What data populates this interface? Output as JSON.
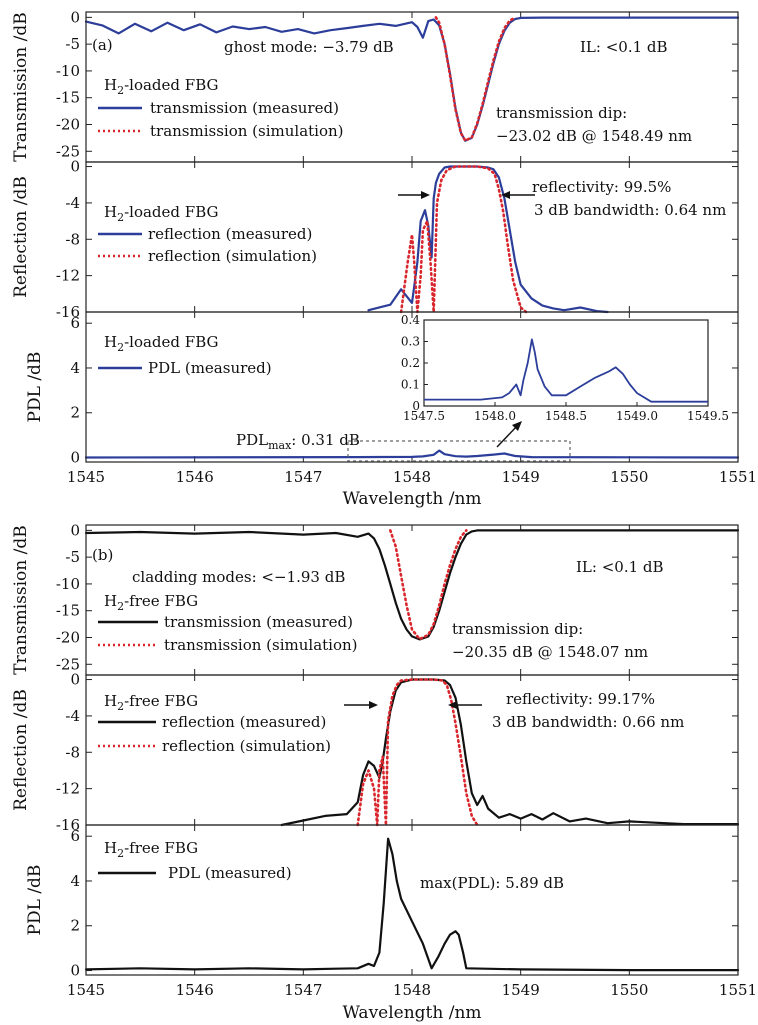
{
  "colors": {
    "measured_a": "#2c3e9a",
    "simulation": "#d9262c",
    "measured_b": "#111111",
    "axis": "#222222"
  },
  "chart_data": [
    {
      "id": "a-transmission",
      "type": "line",
      "panel_label": "(a)",
      "ylabel": "Transmission /dB",
      "xlim": [
        1545,
        1551
      ],
      "ylim": [
        -27,
        1
      ],
      "yticks": [
        "0",
        "-5",
        "-10",
        "-15",
        "-20",
        "-25"
      ],
      "ytick_values": [
        0,
        -5,
        -10,
        -15,
        -20,
        -25
      ],
      "legend_title": "H2-loaded FBG",
      "series": [
        {
          "name": "transmission (measured)",
          "style": "solid",
          "color": "#2c3e9a",
          "x": [
            1545.0,
            1545.15,
            1545.3,
            1545.45,
            1545.6,
            1545.75,
            1545.9,
            1546.05,
            1546.2,
            1546.35,
            1546.5,
            1546.65,
            1546.8,
            1546.95,
            1547.1,
            1547.25,
            1547.4,
            1547.55,
            1547.7,
            1547.85,
            1548.0,
            1548.05,
            1548.1,
            1548.15,
            1548.2,
            1548.25,
            1548.3,
            1548.35,
            1548.4,
            1548.45,
            1548.49,
            1548.55,
            1548.6,
            1548.65,
            1548.7,
            1548.75,
            1548.8,
            1548.85,
            1548.9,
            1548.95,
            1549.0,
            1549.2,
            1549.5,
            1550.0,
            1550.5,
            1551.0
          ],
          "y": [
            -0.8,
            -1.5,
            -3.0,
            -1.2,
            -2.6,
            -1.0,
            -2.4,
            -1.3,
            -2.8,
            -1.7,
            -2.2,
            -1.8,
            -2.7,
            -2.2,
            -3.0,
            -2.4,
            -2.0,
            -1.6,
            -1.2,
            -1.6,
            -0.9,
            -1.8,
            -3.79,
            -0.7,
            -0.4,
            -1.5,
            -5.0,
            -10.5,
            -17.0,
            -21.5,
            -23.02,
            -22.5,
            -20.0,
            -16.5,
            -12.5,
            -8.5,
            -5.0,
            -2.5,
            -1.0,
            -0.3,
            -0.1,
            -0.05,
            -0.05,
            -0.05,
            -0.05,
            -0.05
          ]
        },
        {
          "name": "transmission (simulation)",
          "style": "dotted",
          "color": "#d9262c",
          "x": [
            1548.22,
            1548.25,
            1548.3,
            1548.35,
            1548.4,
            1548.45,
            1548.49,
            1548.55,
            1548.6,
            1548.65,
            1548.7,
            1548.75,
            1548.8,
            1548.85,
            1548.9,
            1548.95
          ],
          "y": [
            0,
            -1.0,
            -5.0,
            -10.8,
            -17.2,
            -21.6,
            -23.0,
            -22.4,
            -19.8,
            -16.2,
            -12.0,
            -8.0,
            -4.5,
            -2.0,
            -0.6,
            0
          ]
        }
      ],
      "annotations": [
        "ghost mode: −3.79 dB",
        "IL: <0.1 dB",
        "transmission dip:",
        "−23.02 dB @ 1548.49 nm"
      ]
    },
    {
      "id": "a-reflection",
      "type": "line",
      "ylabel": "Reflection /dB",
      "xlim": [
        1545,
        1551
      ],
      "ylim": [
        -16,
        0.5
      ],
      "yticks": [
        "0",
        "-4",
        "-8",
        "-12",
        "-16"
      ],
      "ytick_values": [
        0,
        -4,
        -8,
        -12,
        -16
      ],
      "legend_title": "H2-loaded FBG",
      "series": [
        {
          "name": "reflection (measured)",
          "style": "solid",
          "color": "#2c3e9a",
          "x": [
            1547.6,
            1547.8,
            1547.9,
            1548.0,
            1548.02,
            1548.05,
            1548.08,
            1548.12,
            1548.15,
            1548.18,
            1548.2,
            1548.22,
            1548.25,
            1548.3,
            1548.35,
            1548.4,
            1548.5,
            1548.6,
            1548.7,
            1548.75,
            1548.8,
            1548.85,
            1548.9,
            1548.95,
            1549.0,
            1549.1,
            1549.2,
            1549.3,
            1549.4,
            1549.55,
            1549.7,
            1549.8
          ],
          "y": [
            -15.8,
            -15.2,
            -13.5,
            -15.0,
            -13.2,
            -10.5,
            -6.0,
            -4.8,
            -6.5,
            -10.0,
            -3.5,
            -1.8,
            -0.8,
            -0.1,
            0,
            0,
            0,
            0,
            -0.1,
            -0.3,
            -1.2,
            -3.5,
            -7.0,
            -10.5,
            -13.0,
            -14.5,
            -15.3,
            -15.6,
            -15.8,
            -15.5,
            -15.9,
            -16
          ]
        },
        {
          "name": "reflection (simulation)",
          "style": "dotted",
          "color": "#d9262c",
          "x": [
            1547.9,
            1547.96,
            1548.0,
            1548.02,
            1548.05,
            1548.08,
            1548.1,
            1548.14,
            1548.17,
            1548.2,
            1548.23,
            1548.27,
            1548.32,
            1548.4,
            1548.5,
            1548.6,
            1548.7,
            1548.76,
            1548.8,
            1548.84,
            1548.88,
            1548.93,
            1549.0,
            1549.05
          ],
          "y": [
            -16,
            -10.5,
            -7.5,
            -10.5,
            -16,
            -12.0,
            -7.0,
            -6.0,
            -10.5,
            -16,
            -4.0,
            -1.5,
            -0.4,
            0,
            0,
            0,
            -0.2,
            -0.8,
            -2.5,
            -5.0,
            -8.5,
            -12.5,
            -15.5,
            -16
          ]
        }
      ],
      "annotations": [
        "reflectivity: 99.5%",
        "3 dB bandwidth: 0.64 nm"
      ]
    },
    {
      "id": "a-pdl",
      "type": "line",
      "ylabel": "PDL /dB",
      "xlabel": "Wavelength /nm",
      "xlim": [
        1545,
        1551
      ],
      "ylim": [
        -0.2,
        6.5
      ],
      "yticks": [
        "0",
        "2",
        "4",
        "6"
      ],
      "ytick_values": [
        0,
        2,
        4,
        6
      ],
      "xticks": [
        "1545",
        "1546",
        "1547",
        "1548",
        "1549",
        "1550",
        "1551"
      ],
      "xtick_values": [
        1545,
        1546,
        1547,
        1548,
        1549,
        1550,
        1551
      ],
      "legend_title": "H2-loaded FBG",
      "series": [
        {
          "name": "PDL (measured)",
          "style": "solid",
          "color": "#2c3e9a",
          "x": [
            1545.0,
            1547.5,
            1548.0,
            1548.1,
            1548.2,
            1548.25,
            1548.3,
            1548.4,
            1548.5,
            1548.6,
            1548.75,
            1548.85,
            1548.95,
            1549.1,
            1551.0
          ],
          "y": [
            0.0,
            0.02,
            0.03,
            0.05,
            0.12,
            0.31,
            0.15,
            0.06,
            0.04,
            0.07,
            0.13,
            0.18,
            0.07,
            0.02,
            0.0
          ]
        }
      ],
      "annotations": [
        "PDLmax: 0.31 dB"
      ],
      "inset": {
        "xlim": [
          1547.5,
          1549.5
        ],
        "ylim": [
          0,
          0.4
        ],
        "xticks": [
          "1547.5",
          "1548.0",
          "1548.5",
          "1549.0",
          "1549.5"
        ],
        "xtick_values": [
          1547.5,
          1548.0,
          1548.5,
          1549.0,
          1549.5
        ],
        "yticks": [
          "0",
          "0.1",
          "0.2",
          "0.3",
          "0.4"
        ],
        "ytick_values": [
          0,
          0.1,
          0.2,
          0.3,
          0.4
        ],
        "x": [
          1547.5,
          1547.7,
          1547.9,
          1548.05,
          1548.1,
          1548.15,
          1548.18,
          1548.2,
          1548.23,
          1548.26,
          1548.28,
          1548.3,
          1548.35,
          1548.4,
          1548.5,
          1548.6,
          1548.7,
          1548.8,
          1548.85,
          1548.9,
          1548.95,
          1549.0,
          1549.05,
          1549.1,
          1549.2,
          1549.5
        ],
        "y": [
          0.03,
          0.03,
          0.03,
          0.04,
          0.06,
          0.1,
          0.05,
          0.12,
          0.2,
          0.31,
          0.25,
          0.17,
          0.09,
          0.05,
          0.05,
          0.09,
          0.13,
          0.16,
          0.18,
          0.15,
          0.1,
          0.06,
          0.04,
          0.02,
          0.02,
          0.02
        ]
      }
    },
    {
      "id": "b-transmission",
      "type": "line",
      "panel_label": "(b)",
      "ylabel": "Transmission /dB",
      "xlim": [
        1545,
        1551
      ],
      "ylim": [
        -27,
        1
      ],
      "yticks": [
        "0",
        "-5",
        "-10",
        "-15",
        "-20",
        "-25"
      ],
      "ytick_values": [
        0,
        -5,
        -10,
        -15,
        -20,
        -25
      ],
      "legend_title": "H2-free FBG",
      "series": [
        {
          "name": "transmission (measured)",
          "style": "solid",
          "color": "#111111",
          "x": [
            1545.0,
            1545.5,
            1546.0,
            1546.5,
            1547.0,
            1547.3,
            1547.5,
            1547.6,
            1547.65,
            1547.7,
            1547.75,
            1547.8,
            1547.85,
            1547.9,
            1547.95,
            1548.0,
            1548.07,
            1548.15,
            1548.2,
            1548.25,
            1548.3,
            1548.35,
            1548.4,
            1548.45,
            1548.5,
            1548.55,
            1548.6,
            1549.0,
            1550.0,
            1551.0
          ],
          "y": [
            -0.5,
            -0.3,
            -0.6,
            -0.3,
            -0.8,
            -0.5,
            -1.2,
            -0.6,
            -1.5,
            -3.5,
            -6.5,
            -10.0,
            -13.5,
            -16.5,
            -18.5,
            -19.8,
            -20.35,
            -19.8,
            -18.0,
            -15.0,
            -11.5,
            -8.0,
            -5.0,
            -2.5,
            -0.8,
            -0.2,
            0,
            0,
            0,
            0
          ]
        },
        {
          "name": "transmission (simulation)",
          "style": "dotted",
          "color": "#d9262c",
          "x": [
            1547.8,
            1547.85,
            1547.9,
            1547.95,
            1548.0,
            1548.07,
            1548.15,
            1548.2,
            1548.25,
            1548.3,
            1548.35,
            1548.4,
            1548.45,
            1548.5
          ],
          "y": [
            0,
            -3.0,
            -8.5,
            -14.0,
            -18.5,
            -20.3,
            -19.5,
            -17.5,
            -14.0,
            -10.0,
            -6.5,
            -3.5,
            -1.2,
            0
          ]
        }
      ],
      "annotations": [
        "cladding modes: <−1.93 dB",
        "IL: <0.1 dB",
        "transmission dip:",
        "−20.35 dB @ 1548.07 nm"
      ]
    },
    {
      "id": "b-reflection",
      "type": "line",
      "ylabel": "Reflection /dB",
      "xlim": [
        1545,
        1551
      ],
      "ylim": [
        -16,
        0.5
      ],
      "yticks": [
        "0",
        "-4",
        "-8",
        "-12",
        "-16"
      ],
      "ytick_values": [
        0,
        -4,
        -8,
        -12,
        -16
      ],
      "legend_title": "H2-free FBG",
      "series": [
        {
          "name": "reflection (measured)",
          "style": "solid",
          "color": "#111111",
          "x": [
            1546.8,
            1547.0,
            1547.2,
            1547.4,
            1547.5,
            1547.55,
            1547.6,
            1547.65,
            1547.7,
            1547.73,
            1547.76,
            1547.8,
            1547.85,
            1547.9,
            1548.0,
            1548.1,
            1548.2,
            1548.3,
            1548.35,
            1548.4,
            1548.45,
            1548.5,
            1548.55,
            1548.6,
            1548.65,
            1548.7,
            1548.8,
            1548.9,
            1549.0,
            1549.1,
            1549.2,
            1549.3,
            1549.45,
            1549.6,
            1549.8,
            1550.0,
            1550.5,
            1551.0
          ],
          "y": [
            -16,
            -15.5,
            -15.0,
            -14.8,
            -13.5,
            -10.5,
            -9.0,
            -9.5,
            -10.8,
            -9.0,
            -6.5,
            -3.5,
            -1.2,
            -0.3,
            0,
            0,
            0,
            -0.1,
            -0.6,
            -2.0,
            -5.0,
            -9.0,
            -12.5,
            -13.8,
            -12.8,
            -14.2,
            -15.2,
            -14.8,
            -15.3,
            -14.8,
            -15.4,
            -14.7,
            -15.6,
            -15.3,
            -15.8,
            -15.6,
            -15.9,
            -15.9
          ]
        },
        {
          "name": "reflection (simulation)",
          "style": "dotted",
          "color": "#d9262c",
          "x": [
            1547.5,
            1547.55,
            1547.6,
            1547.65,
            1547.68,
            1547.7,
            1547.73,
            1547.76,
            1547.78,
            1547.82,
            1547.86,
            1547.9,
            1548.0,
            1548.1,
            1548.2,
            1548.28,
            1548.32,
            1548.36,
            1548.4,
            1548.45,
            1548.5,
            1548.55,
            1548.6
          ],
          "y": [
            -16,
            -11.5,
            -10.0,
            -12.0,
            -16,
            -10.0,
            -8.5,
            -16,
            -4.5,
            -1.8,
            -0.6,
            -0.1,
            0,
            0,
            0,
            -0.1,
            -0.6,
            -2.2,
            -4.8,
            -8.5,
            -12.5,
            -15.0,
            -16
          ]
        }
      ],
      "annotations": [
        "reflectivity: 99.17%",
        "3 dB bandwidth: 0.66 nm"
      ]
    },
    {
      "id": "b-pdl",
      "type": "line",
      "ylabel": "PDL /dB",
      "xlabel": "Wavelength /nm",
      "xlim": [
        1545,
        1551
      ],
      "ylim": [
        -0.2,
        6.5
      ],
      "yticks": [
        "0",
        "2",
        "4",
        "6"
      ],
      "ytick_values": [
        0,
        2,
        4,
        6
      ],
      "xticks": [
        "1545",
        "1546",
        "1547",
        "1548",
        "1549",
        "1550",
        "1551"
      ],
      "xtick_values": [
        1545,
        1546,
        1547,
        1548,
        1549,
        1550,
        1551
      ],
      "legend_title": "H2-free FBG",
      "series": [
        {
          "name": "PDL (measured)",
          "style": "solid",
          "color": "#111111",
          "x": [
            1545.0,
            1545.5,
            1546.0,
            1546.5,
            1547.0,
            1547.3,
            1547.5,
            1547.6,
            1547.65,
            1547.7,
            1547.74,
            1547.78,
            1547.82,
            1547.86,
            1547.9,
            1548.0,
            1548.1,
            1548.18,
            1548.24,
            1548.3,
            1548.35,
            1548.4,
            1548.43,
            1548.47,
            1548.5,
            1549.0,
            1550.0,
            1551.0
          ],
          "y": [
            0.05,
            0.1,
            0.05,
            0.1,
            0.05,
            0.08,
            0.1,
            0.3,
            0.2,
            0.8,
            3.0,
            5.89,
            5.2,
            4.0,
            3.2,
            2.2,
            1.2,
            0.1,
            0.6,
            1.2,
            1.6,
            1.75,
            1.6,
            0.8,
            0.1,
            0.05,
            0.02,
            0.02
          ]
        }
      ],
      "annotations": [
        "max(PDL): 5.89 dB"
      ]
    }
  ],
  "text": {
    "a_label": "(a)",
    "a_ghost": "ghost mode: −3.79 dB",
    "a_il": "IL: <0.1 dB",
    "a_legend_title": "H",
    "a_legend_sub": "2",
    "a_legend_rest": "-loaded FBG",
    "a_t_meas": "transmission (measured)",
    "a_t_sim": "transmission (simulation)",
    "a_dip1": "transmission dip:",
    "a_dip2": "−23.02 dB @ 1548.49 nm",
    "a_refl": "reflectivity: 99.5%",
    "a_bw": "3 dB bandwidth: 0.64 nm",
    "a_r_meas": "reflection (measured)",
    "a_r_sim": "reflection (simulation)",
    "a_pdl_meas": "PDL (measured)",
    "a_pdlmax_main": "PDL",
    "a_pdlmax_sub": "max",
    "a_pdlmax_val": ": 0.31 dB",
    "b_label": "(b)",
    "b_clad": "cladding modes: <−1.93 dB",
    "b_il": "IL: <0.1 dB",
    "b_legend_rest": "-free FBG",
    "b_t_meas": "transmission (measured)",
    "b_t_sim": "transmission (simulation)",
    "b_dip1": "transmission dip:",
    "b_dip2": "−20.35 dB @ 1548.07 nm",
    "b_refl": "reflectivity: 99.17%",
    "b_bw": "3 dB bandwidth: 0.66 nm",
    "b_r_meas": "reflection (measured)",
    "b_r_sim": "reflection (simulation)",
    "b_pdl_meas": "PDL (measured)",
    "b_pdl_max": "max(PDL): 5.89 dB",
    "xlabel": "Wavelength /nm",
    "ylab_trans": "Transmission /dB",
    "ylab_refl": "Reflection /dB",
    "ylab_pdl": "PDL /dB"
  }
}
